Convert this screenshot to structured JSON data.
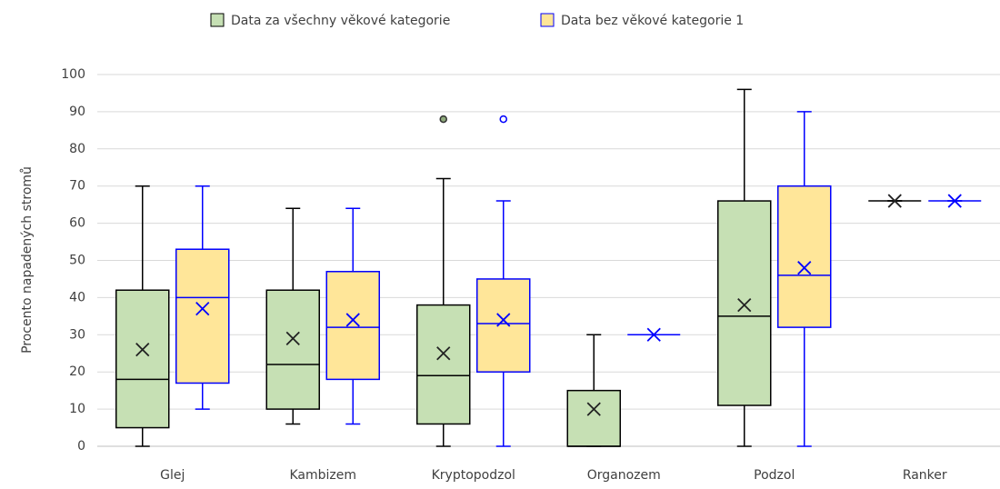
{
  "chart_data": {
    "type": "box",
    "y_label": "Procento napadených stromů",
    "categories": [
      "Glej",
      "Kambizem",
      "Kryptopodzol",
      "Organozem",
      "Podzol",
      "Ranker"
    ],
    "ylim": [
      0,
      100
    ],
    "yticks": [
      0,
      10,
      20,
      30,
      40,
      50,
      60,
      70,
      80,
      90,
      100
    ],
    "grid": true,
    "legend": "top",
    "series": [
      {
        "name": "Data za všechny věkové kategorie",
        "color": "#c6e0b4",
        "edge_color": "#000000",
        "values": [
          {
            "min": 0,
            "q1": 5,
            "median": 18,
            "q3": 42,
            "max": 70,
            "mean": 26,
            "outliers": []
          },
          {
            "min": 6,
            "q1": 10,
            "median": 22,
            "q3": 42,
            "max": 64,
            "mean": 29,
            "outliers": []
          },
          {
            "min": 0,
            "q1": 6,
            "median": 19,
            "q3": 38,
            "max": 72,
            "mean": 25,
            "outliers": [
              88
            ]
          },
          {
            "min": 0,
            "q1": 0,
            "median": 0,
            "q3": 15,
            "max": 30,
            "mean": 10,
            "outliers": []
          },
          {
            "min": 0,
            "q1": 11,
            "median": 35,
            "q3": 66,
            "max": 96,
            "mean": 38,
            "outliers": []
          },
          {
            "min": 66,
            "q1": 66,
            "median": 66,
            "q3": 66,
            "max": 66,
            "mean": 66,
            "outliers": []
          }
        ]
      },
      {
        "name": "Data bez věkové kategorie 1",
        "color": "#ffe699",
        "edge_color": "#0000ff",
        "values": [
          {
            "min": 10,
            "q1": 17,
            "median": 40,
            "q3": 53,
            "max": 70,
            "mean": 37,
            "outliers": []
          },
          {
            "min": 6,
            "q1": 18,
            "median": 32,
            "q3": 47,
            "max": 64,
            "mean": 34,
            "outliers": []
          },
          {
            "min": 0,
            "q1": 20,
            "median": 33,
            "q3": 45,
            "max": 66,
            "mean": 34,
            "outliers": [
              88
            ]
          },
          {
            "min": 30,
            "q1": 30,
            "median": 30,
            "q3": 30,
            "max": 30,
            "mean": 30,
            "outliers": []
          },
          {
            "min": 0,
            "q1": 32,
            "median": 46,
            "q3": 70,
            "max": 90,
            "mean": 48,
            "outliers": []
          },
          {
            "min": 66,
            "q1": 66,
            "median": 66,
            "q3": 66,
            "max": 66,
            "mean": 66,
            "outliers": []
          }
        ]
      }
    ]
  }
}
